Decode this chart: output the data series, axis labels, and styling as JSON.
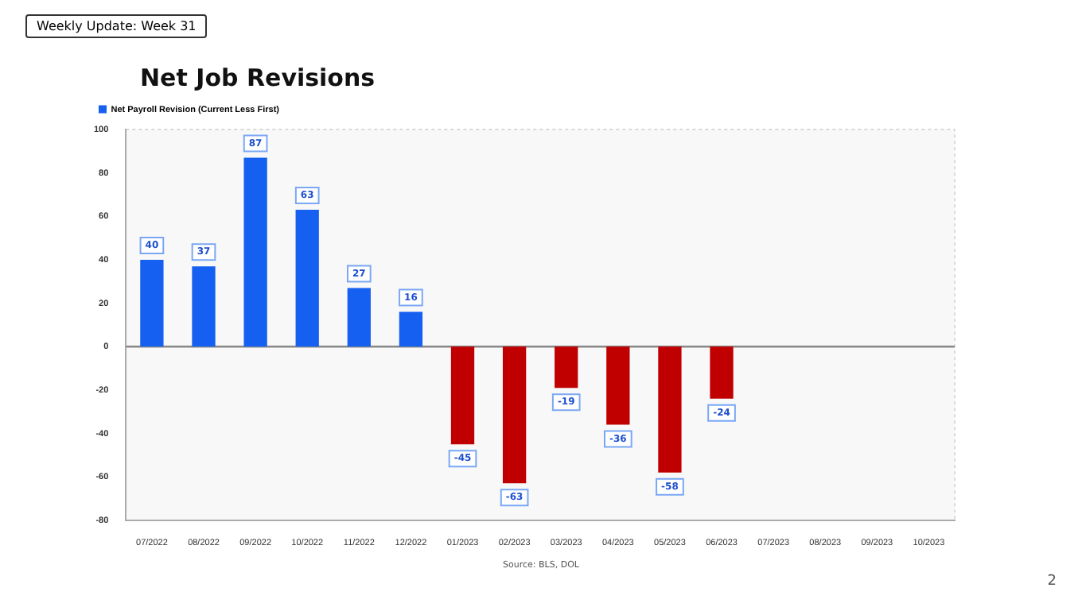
{
  "chart_data": {
    "type": "bar",
    "title": "Net Job Revisions",
    "categories": [
      "07/2022",
      "08/2022",
      "09/2022",
      "10/2022",
      "11/2022",
      "12/2022",
      "01/2023",
      "02/2023",
      "03/2023",
      "04/2023",
      "05/2023",
      "06/2023",
      "07/2023",
      "08/2023",
      "09/2023",
      "10/2023"
    ],
    "series": [
      {
        "name": "Net Payroll Revision (Current Less First)",
        "color": "#1560f0",
        "colors": [
          "#1560f0",
          "#1560f0",
          "#1560f0",
          "#1560f0",
          "#1560f0",
          "#1560f0",
          "#c00000",
          "#c00000",
          "#c00000",
          "#c00000",
          "#c00000",
          "#c00000",
          null,
          null,
          null,
          null
        ],
        "values": [
          40,
          37,
          87,
          63,
          27,
          16,
          -45,
          -63,
          -19,
          -36,
          -58,
          -24,
          null,
          null,
          null,
          null
        ]
      }
    ],
    "ylim": [
      -80,
      100
    ],
    "yticks": [
      -80,
      -60,
      -40,
      -20,
      0,
      20,
      40,
      60,
      80,
      100
    ],
    "grid": false,
    "ref_lines": [
      {
        "axis": "y",
        "value": 0,
        "color": "#888888"
      }
    ],
    "legend": "top left",
    "data_labels": true,
    "annotations": [
      "Weekly Update: Week 31",
      "Source: BLS, DOL",
      "2"
    ]
  }
}
